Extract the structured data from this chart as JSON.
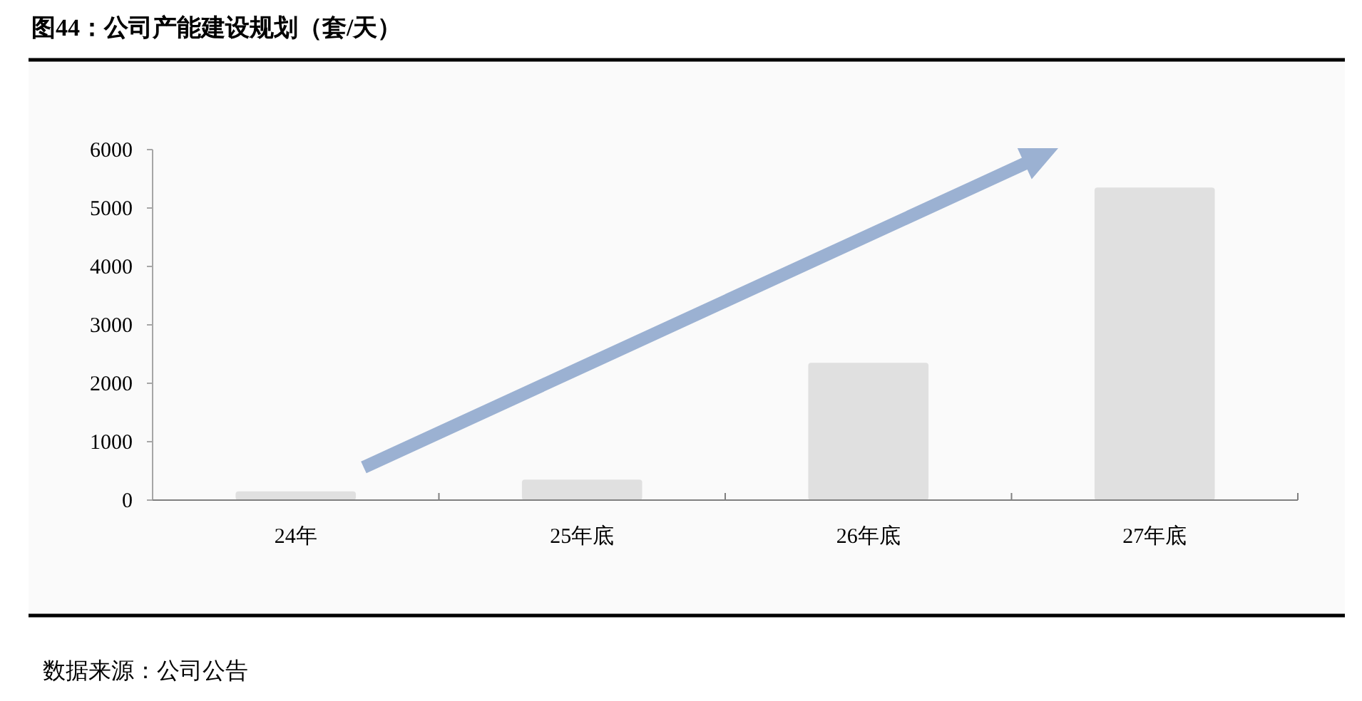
{
  "chart_data": {
    "type": "bar",
    "title": "**图44：**公司产能建设规划（套/天）",
    "categories": [
      "24年",
      "25年底",
      "26年底",
      "27年底"
    ],
    "values": [
      150,
      350,
      2350,
      5350
    ],
    "color": "#e0e0e0",
    "ylim": [
      0,
      6000
    ],
    "yticks": [
      0,
      1000,
      2000,
      3000,
      4000,
      5000,
      6000
    ],
    "annotations": [
      "数据来源：公司公告"
    ]
  }
}
